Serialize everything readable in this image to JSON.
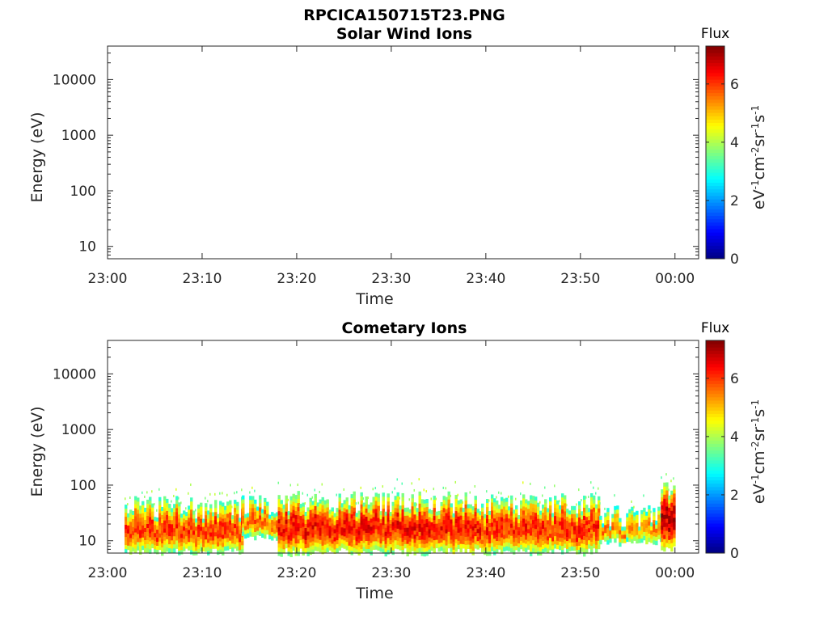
{
  "figure": {
    "title": "RPCICA150715T23.PNG"
  },
  "chart_data": [
    {
      "type": "heatmap",
      "title": "Solar Wind Ions",
      "xlabel": "Time",
      "ylabel": "Energy (eV)",
      "x_ticks": [
        "23:00",
        "23:10",
        "23:20",
        "23:30",
        "23:40",
        "23:50",
        "00:00"
      ],
      "y_ticks": [
        "10",
        "100",
        "1000",
        "10000"
      ],
      "y_scale": "log",
      "ylim": [
        6,
        40000
      ],
      "xlim_minutes": [
        0,
        62.5
      ],
      "colorbar": {
        "title": "Flux",
        "label": "eV-1cm-2sr-1s-1",
        "ticks": [
          "0",
          "2",
          "4",
          "6"
        ],
        "range": [
          0,
          7.3
        ],
        "colormap": "jet"
      },
      "data": []
    },
    {
      "type": "heatmap",
      "title": "Cometary Ions",
      "xlabel": "Time",
      "ylabel": "Energy (eV)",
      "x_ticks": [
        "23:00",
        "23:10",
        "23:20",
        "23:30",
        "23:40",
        "23:50",
        "00:00"
      ],
      "y_ticks": [
        "10",
        "100",
        "1000",
        "10000"
      ],
      "y_scale": "log",
      "ylim": [
        6,
        40000
      ],
      "xlim_minutes": [
        0,
        62.5
      ],
      "colorbar": {
        "title": "Flux",
        "label": "eV-1cm-2sr-1s-1",
        "ticks": [
          "0",
          "2",
          "4",
          "6"
        ],
        "range": [
          0,
          7.3
        ],
        "colormap": "jet"
      },
      "data_segments": [
        {
          "t_start": 1.8,
          "t_end": 14.2,
          "e_low": 6,
          "e_high": 45,
          "peak_flux": 6.2
        },
        {
          "t_start": 14.2,
          "t_end": 18.0,
          "e_low": 11,
          "e_high": 48,
          "peak_flux": 5.8
        },
        {
          "t_start": 18.0,
          "t_end": 39.5,
          "e_low": 6,
          "e_high": 55,
          "peak_flux": 6.5
        },
        {
          "t_start": 39.5,
          "t_end": 52.0,
          "e_low": 6,
          "e_high": 50,
          "peak_flux": 6.3
        },
        {
          "t_start": 52.0,
          "t_end": 58.5,
          "e_low": 9,
          "e_high": 30,
          "peak_flux": 5.6
        },
        {
          "t_start": 58.5,
          "t_end": 60.0,
          "e_low": 7,
          "e_high": 80,
          "peak_flux": 7.0
        }
      ]
    }
  ]
}
